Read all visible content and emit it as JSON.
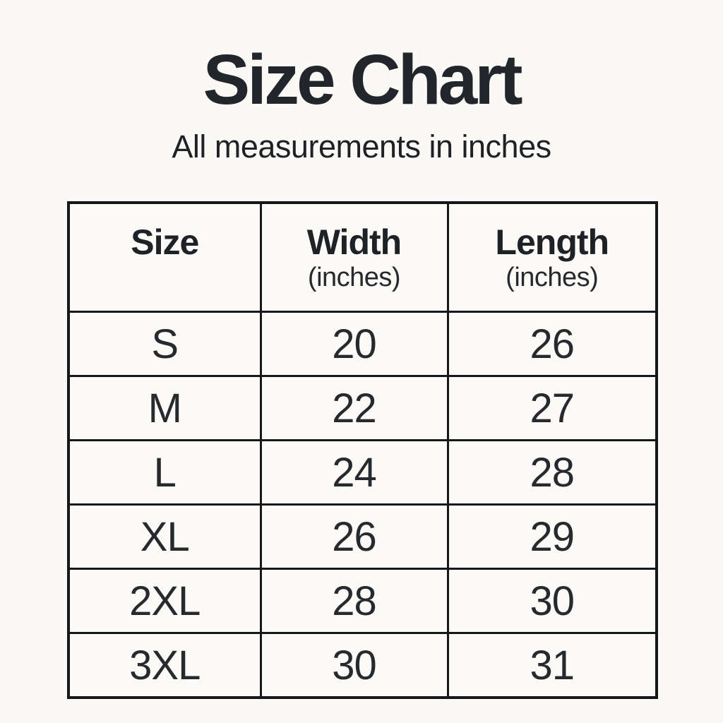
{
  "page": {
    "title": "Size Chart",
    "subtitle": "All measurements in inches"
  },
  "chart_data": {
    "type": "table",
    "title": "Size Chart",
    "subtitle": "All measurements in inches",
    "units": "inches",
    "columns": [
      {
        "label": "Size",
        "sublabel": ""
      },
      {
        "label": "Width",
        "sublabel": "(inches)"
      },
      {
        "label": "Length",
        "sublabel": "(inches)"
      }
    ],
    "rows": [
      [
        "S",
        20,
        26
      ],
      [
        "M",
        22,
        27
      ],
      [
        "L",
        24,
        28
      ],
      [
        "XL",
        26,
        29
      ],
      [
        "2XL",
        28,
        30
      ],
      [
        "3XL",
        30,
        31
      ]
    ]
  },
  "colors": {
    "background": "#faf9f6",
    "cell_background": "#fbfaf7",
    "border": "#15171a",
    "title_text": "#22262b",
    "body_text": "#26292d"
  }
}
